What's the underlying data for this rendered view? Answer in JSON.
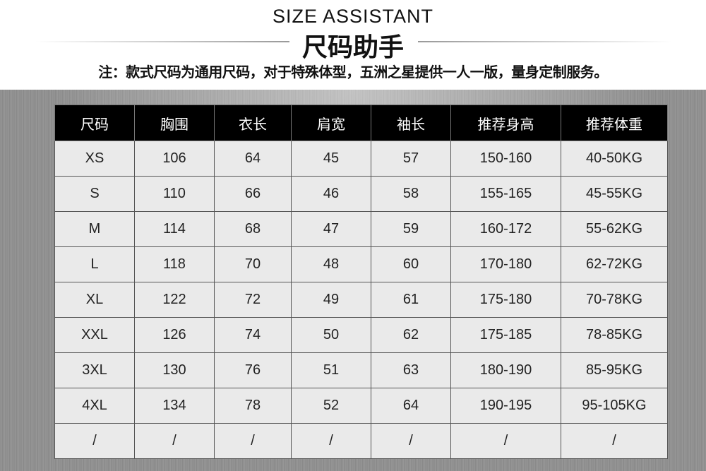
{
  "header": {
    "title_en": "SIZE ASSISTANT",
    "title_cn": "尺码助手",
    "note": "注：款式尺码为通用尺码，对于特殊体型，五洲之星提供一人一版，量身定制服务。"
  },
  "table": {
    "columns": [
      "尺码",
      "胸围",
      "衣长",
      "肩宽",
      "袖长",
      "推荐身高",
      "推荐体重"
    ],
    "rows": [
      [
        "XS",
        "106",
        "64",
        "45",
        "57",
        "150-160",
        "40-50KG"
      ],
      [
        "S",
        "110",
        "66",
        "46",
        "58",
        "155-165",
        "45-55KG"
      ],
      [
        "M",
        "114",
        "68",
        "47",
        "59",
        "160-172",
        "55-62KG"
      ],
      [
        "L",
        "118",
        "70",
        "48",
        "60",
        "170-180",
        "62-72KG"
      ],
      [
        "XL",
        "122",
        "72",
        "49",
        "61",
        "175-180",
        "70-78KG"
      ],
      [
        "XXL",
        "126",
        "74",
        "50",
        "62",
        "175-185",
        "78-85KG"
      ],
      [
        "3XL",
        "130",
        "76",
        "51",
        "63",
        "180-190",
        "85-95KG"
      ],
      [
        "4XL",
        "134",
        "78",
        "52",
        "64",
        "190-195",
        "95-105KG"
      ],
      [
        "/",
        "/",
        "/",
        "/",
        "/",
        "/",
        "/"
      ]
    ]
  }
}
